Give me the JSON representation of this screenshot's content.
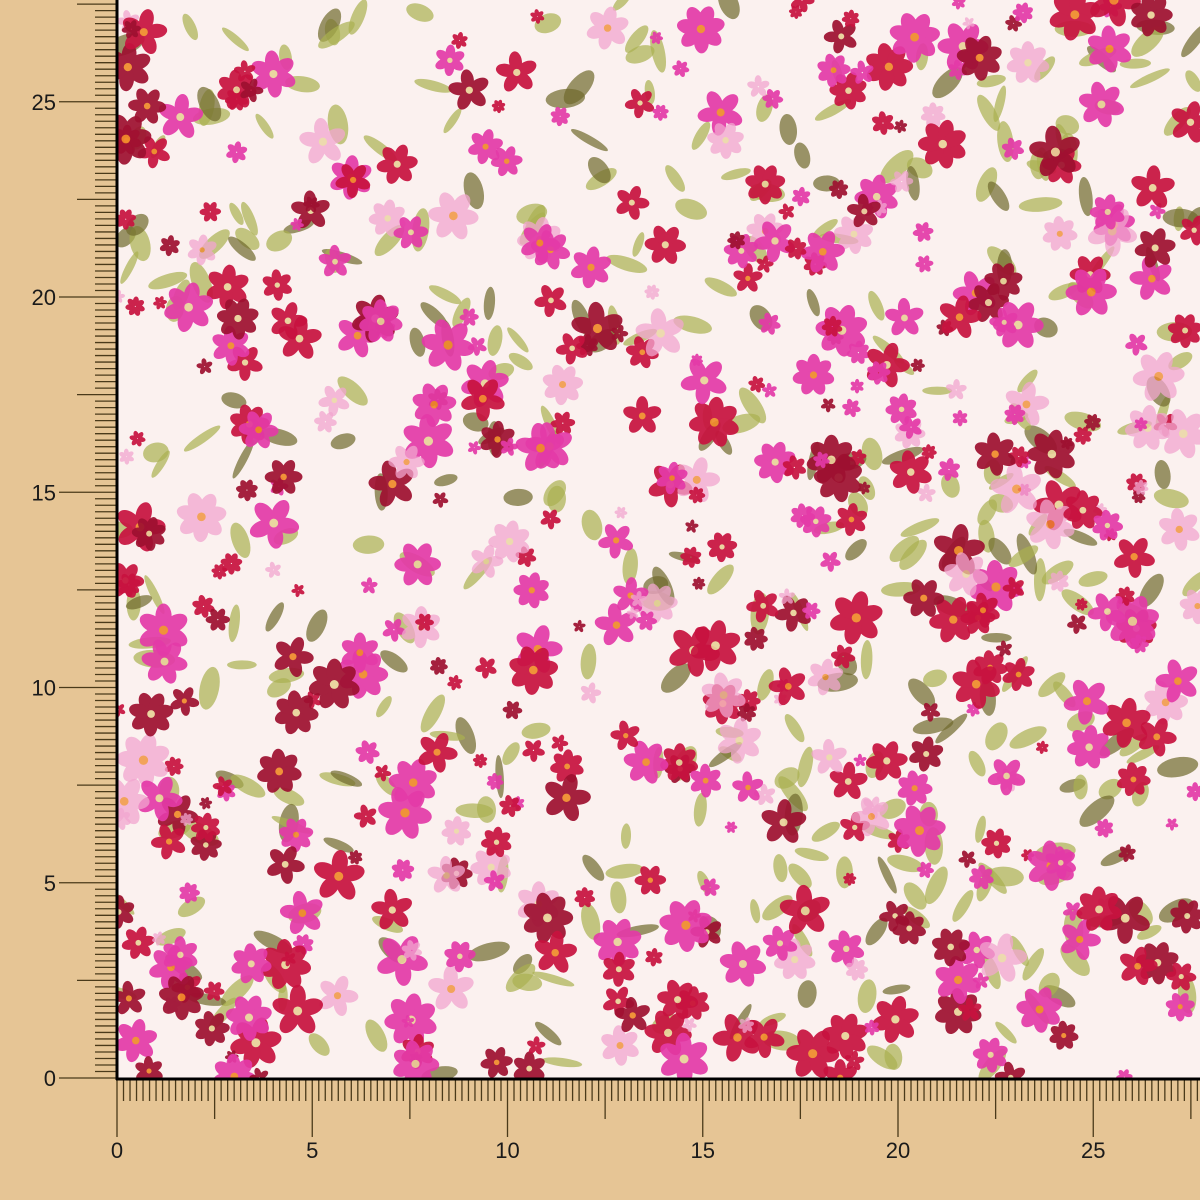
{
  "swatch": {
    "description_colors": {
      "background": "#e6c595",
      "fabric_base": "#fbf1ef",
      "crimson": "#c8123f",
      "magenta": "#e43aa8",
      "pink": "#f2a6cf",
      "burgundy": "#9e1030",
      "leaf": "#a9b050",
      "dark_leaf": "#6f6a2c"
    },
    "pattern": "floral-print"
  },
  "ruler": {
    "x_labels": [
      "0",
      "5",
      "10",
      "15",
      "20",
      "25"
    ],
    "y_labels": [
      "0",
      "5",
      "10",
      "15",
      "20",
      "25"
    ],
    "minor_ticks_per_unit": 6
  }
}
